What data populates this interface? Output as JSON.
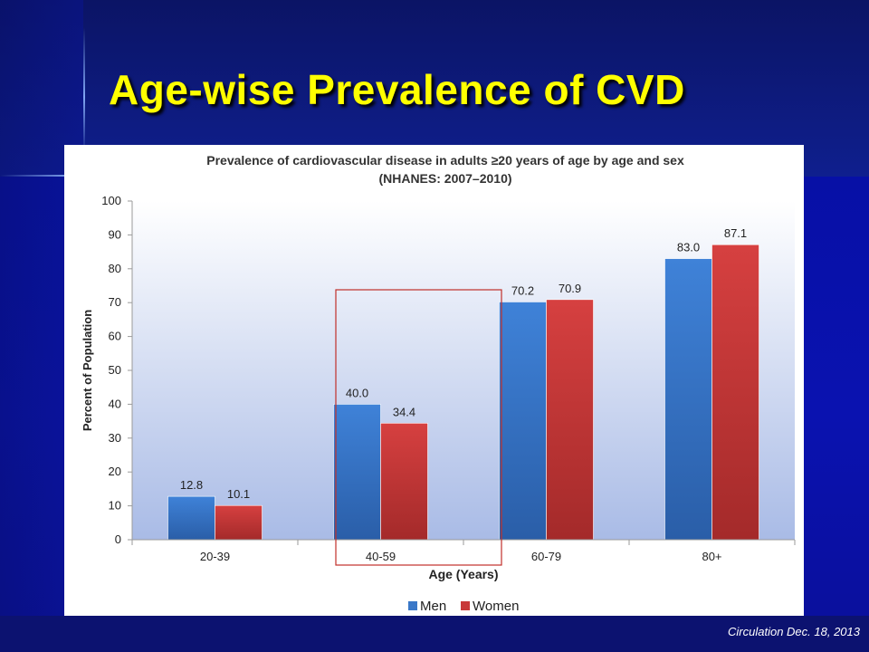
{
  "slide": {
    "title": "Age-wise Prevalence of CVD",
    "citation": "Circulation Dec. 18, 2013"
  },
  "colors": {
    "title": "#ffff00",
    "men": "#3a78c8",
    "women": "#c83a3a",
    "highlight_box": "#c0302a"
  },
  "chart_data": {
    "type": "bar",
    "title": "Prevalence of cardiovascular disease in adults ≥20 years of age by age and sex",
    "subtitle": "(NHANES: 2007–2010)",
    "xlabel": "Age (Years)",
    "ylabel": "Percent of Population",
    "categories": [
      "20-39",
      "40-59",
      "60-79",
      "80+"
    ],
    "series": [
      {
        "name": "Men",
        "values": [
          12.8,
          40.0,
          70.2,
          83.0
        ]
      },
      {
        "name": "Women",
        "values": [
          10.1,
          34.4,
          70.9,
          87.1
        ]
      }
    ],
    "data_labels": [
      [
        "12.8",
        "40.0",
        "70.2",
        "83.0"
      ],
      [
        "10.1",
        "34.4",
        "70.9",
        "87.1"
      ]
    ],
    "yticks": [
      "0",
      "10",
      "20",
      "30",
      "40",
      "50",
      "60",
      "70",
      "80",
      "90",
      "100"
    ],
    "ylim": [
      0,
      100
    ],
    "grid": false,
    "legend_position": "bottom",
    "highlighted_category": "40-59"
  }
}
